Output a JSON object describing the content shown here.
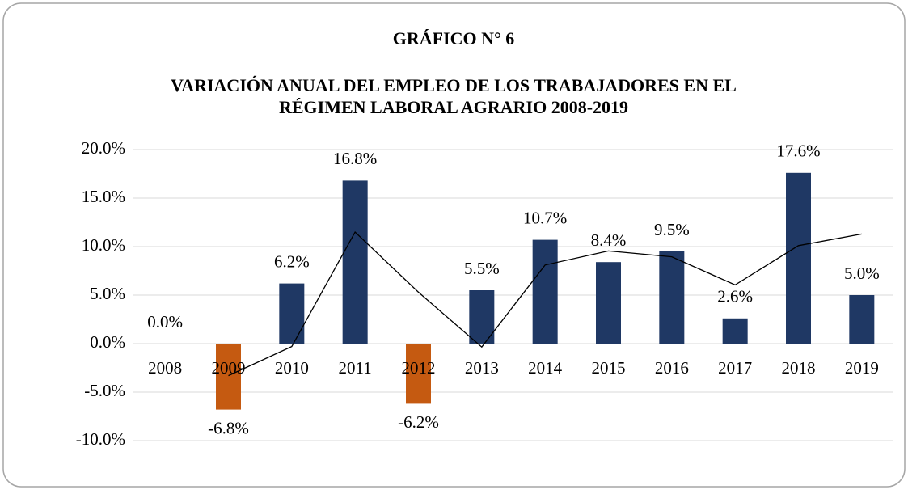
{
  "chart_data": {
    "type": "bar",
    "title": "GRÁFICO N° 6",
    "subtitle": [
      "VARIACIÓN ANUAL DEL EMPLEO DE LOS TRABAJADORES EN EL",
      "RÉGIMEN LABORAL AGRARIO 2008-2019"
    ],
    "categories": [
      "2008",
      "2009",
      "2010",
      "2011",
      "2012",
      "2013",
      "2014",
      "2015",
      "2016",
      "2017",
      "2018",
      "2019"
    ],
    "series": [
      {
        "type": "bar",
        "values": [
          0.0,
          -6.8,
          6.2,
          16.8,
          -6.2,
          5.5,
          10.7,
          8.4,
          9.5,
          2.6,
          17.6,
          5.0
        ],
        "value_labels": [
          "0.0%",
          "-6.8%",
          "6.2%",
          "16.8%",
          "-6.2%",
          "5.5%",
          "10.7%",
          "8.4%",
          "9.5%",
          "2.6%",
          "17.6%",
          "5.0%"
        ],
        "colors": [
          "#1f3864",
          "#c55a11",
          "#1f3864",
          "#1f3864",
          "#c55a11",
          "#1f3864",
          "#1f3864",
          "#1f3864",
          "#1f3864",
          "#1f3864",
          "#1f3864",
          "#1f3864"
        ]
      },
      {
        "type": "line",
        "color": "#000000",
        "values": [
          null,
          -3.3,
          -0.3,
          11.5,
          5.3,
          -0.35,
          8.1,
          9.55,
          8.95,
          6.05,
          10.1,
          11.3
        ]
      }
    ],
    "ylim": [
      -10,
      20
    ],
    "yticks": [
      {
        "value": -10,
        "label": "-10.0%"
      },
      {
        "value": -5,
        "label": "-5.0%"
      },
      {
        "value": 0,
        "label": "0.0%"
      },
      {
        "value": 5,
        "label": "5.0%"
      },
      {
        "value": 10,
        "label": "10.0%"
      },
      {
        "value": 15,
        "label": "15.0%"
      },
      {
        "value": 20,
        "label": "20.0%"
      }
    ],
    "grid": true
  }
}
